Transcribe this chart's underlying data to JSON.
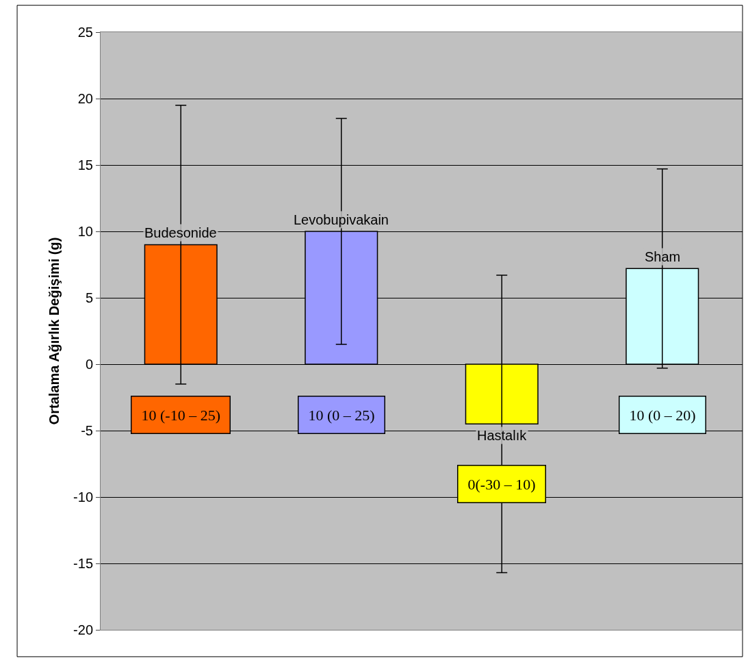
{
  "chart_data": {
    "type": "bar",
    "ylabel": "Ortalama Ağırlık Değişimi (g)",
    "categories": [
      "Budesonide",
      "Levobupivakain",
      "Hastalık",
      "Sham"
    ],
    "values": [
      9,
      10,
      -4.5,
      7.2
    ],
    "colors": [
      "#ff6600",
      "#9999ff",
      "#ffff00",
      "#ccffff"
    ],
    "errors": [
      [
        -1.5,
        19.5
      ],
      [
        1.5,
        18.5
      ],
      [
        -15.7,
        6.7
      ],
      [
        -0.3,
        14.7
      ]
    ],
    "ylim": [
      -20,
      25
    ],
    "yticks": [
      -20,
      -15,
      -10,
      -5,
      0,
      5,
      10,
      15,
      20,
      25
    ],
    "grid": "y",
    "tick_labels": "y",
    "annotations": [
      "10 (-10 – 25)",
      "10 (0 – 25)",
      "0(-30 – 10)",
      "10 (0 – 20)"
    ]
  }
}
